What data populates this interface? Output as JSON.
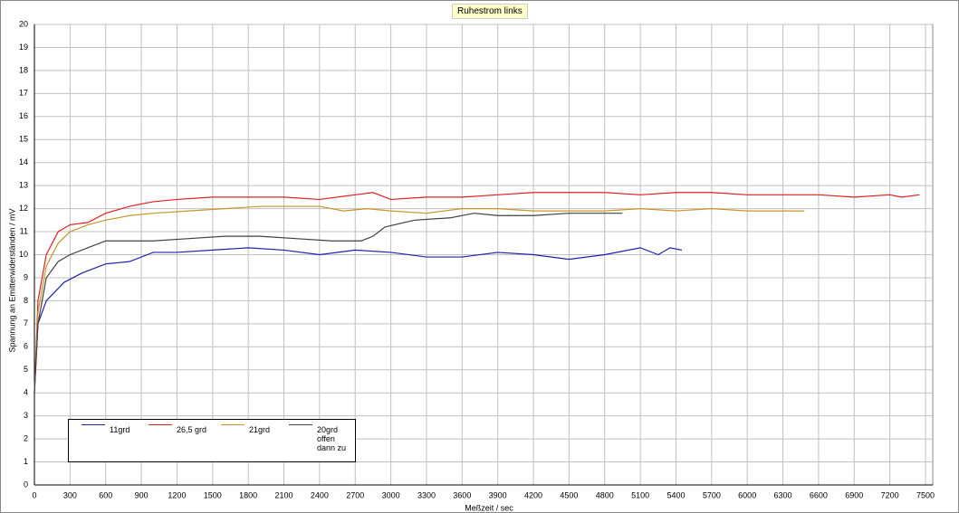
{
  "chart_data": {
    "type": "line",
    "title": "Ruhestrom links",
    "x_label": "Meßzeit  / sec",
    "y_label": "Spannung an Emitterwiderständen / mV",
    "xlim": [
      0,
      7500
    ],
    "ylim": [
      0,
      20
    ],
    "xticks": [
      0,
      300,
      600,
      900,
      1200,
      1500,
      1800,
      2100,
      2400,
      2700,
      3000,
      3300,
      3600,
      3900,
      4200,
      4500,
      4800,
      5100,
      5400,
      5700,
      6000,
      6300,
      6600,
      6900,
      7200,
      7500
    ],
    "yticks": [
      0,
      1,
      2,
      3,
      4,
      5,
      6,
      7,
      8,
      9,
      10,
      11,
      12,
      13,
      14,
      15,
      16,
      17,
      18,
      19,
      20
    ],
    "grid": true,
    "series": [
      {
        "name": "11grd",
        "color": "#2020b0",
        "x": [
          0,
          30,
          100,
          250,
          400,
          600,
          800,
          1000,
          1200,
          1500,
          1800,
          2100,
          2400,
          2700,
          3000,
          3300,
          3600,
          3900,
          4200,
          4500,
          4800,
          5100,
          5250,
          5350,
          5450
        ],
        "values": [
          4,
          7,
          8,
          8.8,
          9.2,
          9.6,
          9.7,
          10.1,
          10.1,
          10.2,
          10.3,
          10.2,
          10,
          10.2,
          10.1,
          9.9,
          9.9,
          10.1,
          10,
          9.8,
          10,
          10.3,
          10,
          10.3,
          10.2
        ]
      },
      {
        "name": "26,5 grd",
        "color": "#e02020",
        "x": [
          0,
          30,
          100,
          200,
          300,
          450,
          600,
          800,
          1000,
          1200,
          1500,
          1800,
          2100,
          2400,
          2700,
          2850,
          3000,
          3300,
          3600,
          3900,
          4200,
          4500,
          4800,
          5100,
          5400,
          5700,
          6000,
          6300,
          6600,
          6900,
          7200,
          7300,
          7450
        ],
        "values": [
          4,
          8,
          10,
          11,
          11.3,
          11.4,
          11.8,
          12.1,
          12.3,
          12.4,
          12.5,
          12.5,
          12.5,
          12.4,
          12.6,
          12.7,
          12.4,
          12.5,
          12.5,
          12.6,
          12.7,
          12.7,
          12.7,
          12.6,
          12.7,
          12.7,
          12.6,
          12.6,
          12.6,
          12.5,
          12.6,
          12.5,
          12.6
        ]
      },
      {
        "name": "21grd",
        "color": "#c8962a",
        "x": [
          0,
          30,
          100,
          200,
          300,
          450,
          600,
          800,
          1000,
          1300,
          1600,
          1900,
          2200,
          2400,
          2600,
          2800,
          3000,
          3300,
          3600,
          3900,
          4200,
          4500,
          4800,
          5100,
          5400,
          5700,
          6000,
          6300,
          6480
        ],
        "values": [
          4,
          7.5,
          9.5,
          10.5,
          11,
          11.3,
          11.5,
          11.7,
          11.8,
          11.9,
          12,
          12.1,
          12.1,
          12.1,
          11.9,
          12,
          11.9,
          11.8,
          12,
          12,
          11.9,
          11.9,
          11.9,
          12,
          11.9,
          12,
          11.9,
          11.9,
          11.9
        ]
      },
      {
        "name": "20grd\noffen\ndann zu",
        "color": "#404040",
        "x": [
          0,
          30,
          100,
          200,
          300,
          450,
          600,
          800,
          1000,
          1300,
          1600,
          1900,
          2200,
          2500,
          2750,
          2850,
          2950,
          3200,
          3500,
          3700,
          3900,
          4200,
          4500,
          4800,
          4950
        ],
        "values": [
          4,
          7,
          9,
          9.7,
          10,
          10.3,
          10.6,
          10.6,
          10.6,
          10.7,
          10.8,
          10.8,
          10.7,
          10.6,
          10.6,
          10.8,
          11.2,
          11.5,
          11.6,
          11.8,
          11.7,
          11.7,
          11.8,
          11.8,
          11.8
        ]
      }
    ]
  }
}
